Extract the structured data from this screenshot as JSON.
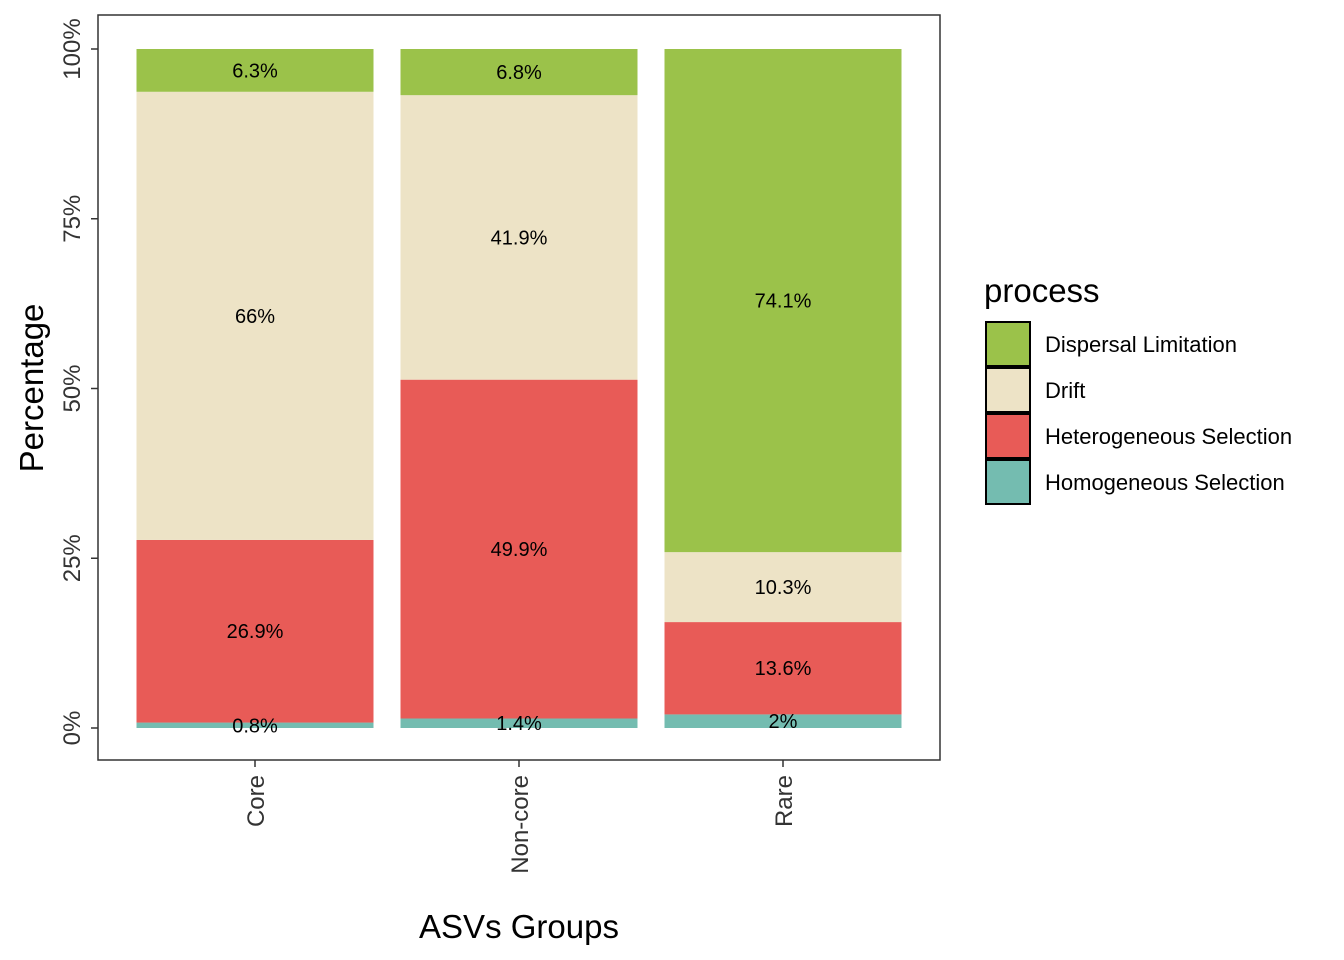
{
  "chart_data": {
    "type": "bar",
    "stacked": true,
    "normalized": true,
    "xlabel": "ASVs Groups",
    "ylabel": "Percentage",
    "ylim": [
      0,
      100
    ],
    "yticks": [
      0,
      25,
      50,
      75,
      100
    ],
    "ytick_labels": [
      "0%",
      "25%",
      "50%",
      "75%",
      "100%"
    ],
    "categories": [
      "Core",
      "Non-core",
      "Rare"
    ],
    "series": [
      {
        "name": "Homogeneous Selection",
        "color": "#74BCB0",
        "values": [
          0.8,
          1.4,
          2.0
        ],
        "labels": [
          "0.8%",
          "1.4%",
          "2%"
        ]
      },
      {
        "name": "Heterogeneous Selection",
        "color": "#E85B57",
        "values": [
          26.9,
          49.9,
          13.6
        ],
        "labels": [
          "26.9%",
          "49.9%",
          "13.6%"
        ]
      },
      {
        "name": "Drift",
        "color": "#EDE3C6",
        "values": [
          66.0,
          41.9,
          10.3
        ],
        "labels": [
          "66%",
          "41.9%",
          "10.3%"
        ]
      },
      {
        "name": "Dispersal Limitation",
        "color": "#9BC24A",
        "values": [
          6.3,
          6.8,
          74.1
        ],
        "labels": [
          "6.3%",
          "6.8%",
          "74.1%"
        ]
      }
    ],
    "legend": {
      "title": "process",
      "placement": "right",
      "order": [
        "Dispersal Limitation",
        "Drift",
        "Heterogeneous Selection",
        "Homogeneous Selection"
      ]
    },
    "grid": false
  }
}
